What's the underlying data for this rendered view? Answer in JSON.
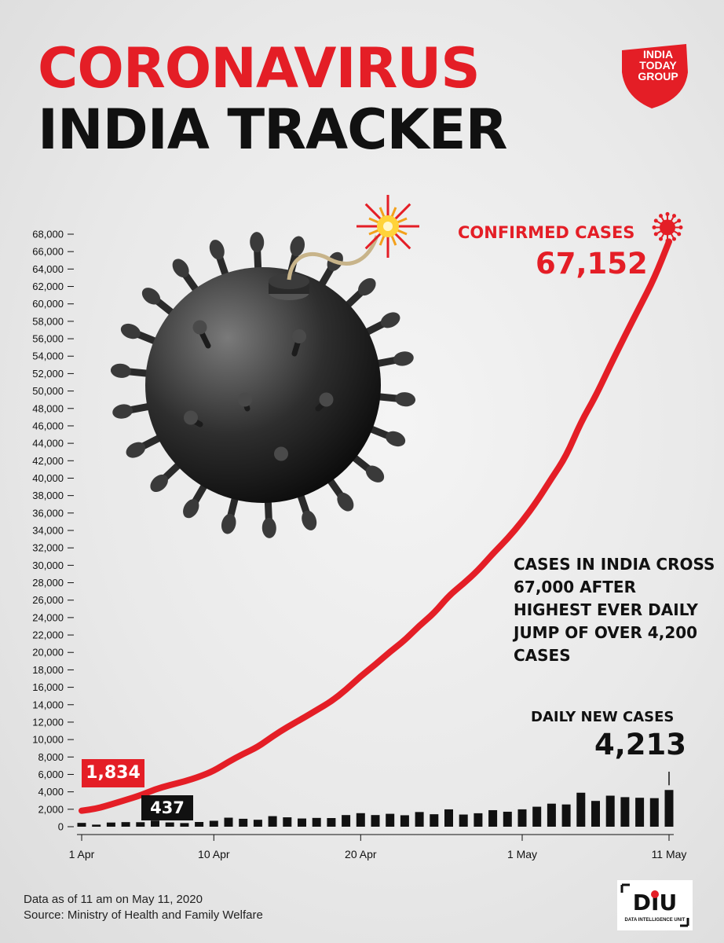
{
  "header": {
    "title_line1": "CORONAVIRUS",
    "title_line2": "INDIA TRACKER",
    "brand_logo_text": [
      "INDIA",
      "TODAY",
      "GROUP"
    ]
  },
  "colors": {
    "accent": "#e41e26",
    "dark": "#111111",
    "background": "#ececec"
  },
  "labels": {
    "confirmed_title": "CONFIRMED CASES",
    "confirmed_value": "67,152",
    "daily_title": "DAILY NEW CASES",
    "daily_value": "4,213",
    "start_confirmed": "1,834",
    "start_daily": "437",
    "annotation": "CASES IN INDIA CROSS 67,000 AFTER HIGHEST EVER DAILY JUMP OF OVER 4,200 CASES"
  },
  "footer": {
    "line1": "Data as of 11 am on May 11, 2020",
    "line2": "Source: Ministry of Health and Family Welfare",
    "unit_logo": "DIU",
    "unit_logo_subtitle": "DATA INTELLIGENCE UNIT"
  },
  "illustration": {
    "icon": "coronavirus-bomb-icon"
  },
  "chart_data": {
    "type": "line",
    "x_tick_labels": [
      "1 Apr",
      "10 Apr",
      "20 Apr",
      "1 May",
      "11 May"
    ],
    "x_tick_days": [
      1,
      10,
      20,
      31,
      41
    ],
    "ylim": [
      0,
      68000
    ],
    "y_ticks": [
      0,
      2000,
      4000,
      6000,
      8000,
      10000,
      12000,
      14000,
      16000,
      18000,
      20000,
      22000,
      24000,
      26000,
      28000,
      30000,
      32000,
      34000,
      36000,
      38000,
      40000,
      42000,
      44000,
      46000,
      48000,
      50000,
      52000,
      54000,
      56000,
      58000,
      60000,
      62000,
      64000,
      66000,
      68000
    ],
    "y_tick_labels": [
      "0",
      "2,000",
      "4,000",
      "6,000",
      "8,000",
      "10,000",
      "12,000",
      "14,000",
      "16,000",
      "18,000",
      "20,000",
      "22,000",
      "24,000",
      "26,000",
      "28,000",
      "30,000",
      "32,000",
      "34,000",
      "36,000",
      "38,000",
      "40,000",
      "42,000",
      "44,000",
      "46,000",
      "48,000",
      "50,000",
      "52,000",
      "54,000",
      "56,000",
      "58,000",
      "60,000",
      "62,000",
      "64,000",
      "66,000",
      "68,000"
    ],
    "series": [
      {
        "values": [
          1834,
          2069,
          2547,
          3072,
          3588,
          4289,
          4778,
          5194,
          5734,
          6412,
          7447,
          8356,
          9152,
          10363,
          11439,
          12380,
          13387,
          14378,
          15712,
          17265,
          18600,
          20080,
          21393,
          23077,
          24506,
          26496,
          27892,
          29435,
          31332,
          33050,
          35043,
          37336,
          39980,
          42533,
          46433,
          49391,
          52952,
          56342,
          59662,
          62939,
          67152
        ]
      },
      {
        "values": [
          437,
          235,
          478,
          525,
          516,
          701,
          489,
          416,
          540,
          678,
          1035,
          909,
          796,
          1211,
          1076,
          941,
          1007,
          991,
          1334,
          1553,
          1335,
          1480,
          1313,
          1684,
          1429,
          1990,
          1396,
          1543,
          1897,
          1718,
          1993,
          2293,
          2644,
          2553,
          3900,
          2958,
          3561,
          3390,
          3320,
          3277,
          4213
        ]
      }
    ],
    "grid": false,
    "legend": "none"
  }
}
